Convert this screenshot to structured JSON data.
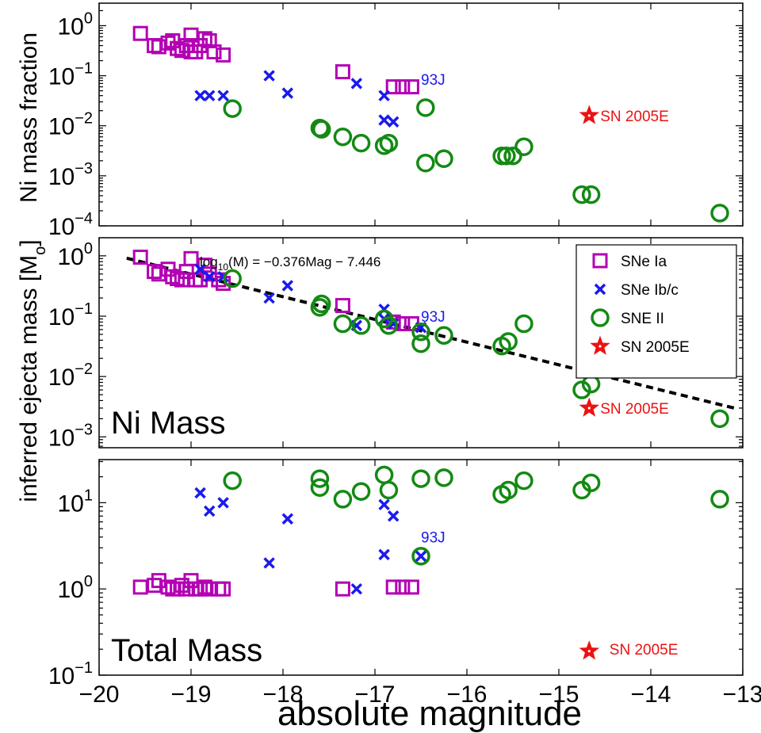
{
  "figure": {
    "xlabel": "absolute magnitude",
    "ylabel_main": "inferred ejecta mass [M",
    "ylabel_sub": "o",
    "ylabel_close": "]",
    "x_ticks": [
      "−20",
      "−19",
      "−18",
      "−17",
      "−16",
      "−15",
      "−14",
      "−13"
    ]
  },
  "colors": {
    "ia": "#b300b3",
    "ibc": "#1a1aee",
    "ii": "#138a13",
    "sn2005e": "#ee1111",
    "fit": "#000000"
  },
  "chart_data": [
    {
      "type": "scatter",
      "panel": "top",
      "ylabel": "Ni mass fraction",
      "xlim": [
        -20,
        -13
      ],
      "ylim": [
        0.0001,
        2
      ],
      "yscale": "log",
      "y_ticks": [
        {
          "base": "10",
          "exp": "0"
        },
        {
          "base": "10",
          "exp": "−1"
        },
        {
          "base": "10",
          "exp": "−2"
        },
        {
          "base": "10",
          "exp": "−3"
        },
        {
          "base": "10",
          "exp": "−4"
        }
      ],
      "annotations": [
        {
          "text": "93J",
          "x": -16.5,
          "y": 0.085,
          "color": "#1a1aee"
        },
        {
          "text": "SN 2005E",
          "x": -14.55,
          "y": 0.016,
          "color": "#ee1111"
        }
      ],
      "series": [
        {
          "key": "ia",
          "marker": "square",
          "points": [
            [
              -19.55,
              0.7
            ],
            [
              -19.4,
              0.4
            ],
            [
              -19.35,
              0.38
            ],
            [
              -19.25,
              0.45
            ],
            [
              -19.2,
              0.5
            ],
            [
              -19.15,
              0.35
            ],
            [
              -19.1,
              0.32
            ],
            [
              -19.05,
              0.4
            ],
            [
              -19.0,
              0.65
            ],
            [
              -19.0,
              0.3
            ],
            [
              -18.95,
              0.3
            ],
            [
              -18.9,
              0.4
            ],
            [
              -18.85,
              0.55
            ],
            [
              -18.8,
              0.5
            ],
            [
              -18.75,
              0.3
            ],
            [
              -18.65,
              0.26
            ],
            [
              -17.35,
              0.12
            ],
            [
              -16.8,
              0.06
            ],
            [
              -16.7,
              0.06
            ],
            [
              -16.6,
              0.06
            ]
          ]
        },
        {
          "key": "ibc",
          "marker": "x",
          "points": [
            [
              -18.9,
              0.04
            ],
            [
              -18.8,
              0.04
            ],
            [
              -18.65,
              0.04
            ],
            [
              -18.15,
              0.1
            ],
            [
              -17.95,
              0.045
            ],
            [
              -17.2,
              0.07
            ],
            [
              -16.9,
              0.04
            ],
            [
              -16.9,
              0.013
            ],
            [
              -16.8,
              0.012
            ]
          ]
        },
        {
          "key": "ii",
          "marker": "circle",
          "points": [
            [
              -18.55,
              0.022
            ],
            [
              -17.6,
              0.009
            ],
            [
              -17.58,
              0.0085
            ],
            [
              -17.35,
              0.006
            ],
            [
              -17.15,
              0.0045
            ],
            [
              -16.9,
              0.004
            ],
            [
              -16.85,
              0.0045
            ],
            [
              -16.45,
              0.023
            ],
            [
              -16.45,
              0.0018
            ],
            [
              -16.25,
              0.0022
            ],
            [
              -15.62,
              0.0025
            ],
            [
              -15.57,
              0.0025
            ],
            [
              -15.5,
              0.0025
            ],
            [
              -15.38,
              0.0038
            ],
            [
              -14.75,
              0.00042
            ],
            [
              -14.65,
              0.00042
            ],
            [
              -13.25,
              0.00018
            ]
          ]
        },
        {
          "key": "sn2005e",
          "marker": "star",
          "points": [
            [
              -14.67,
              0.016
            ]
          ]
        }
      ]
    },
    {
      "type": "scatter",
      "panel": "middle",
      "title": "Ni Mass",
      "fit_label": {
        "pre": "log",
        "sub": "10",
        "post": "(M) = −0.376Mag − 7.446"
      },
      "fit": {
        "slope": -0.376,
        "intercept": -7.446,
        "x_range": [
          -19.7,
          -13.05
        ]
      },
      "xlim": [
        -20,
        -13
      ],
      "ylim": [
        0.001,
        2
      ],
      "yscale": "log",
      "y_ticks": [
        {
          "base": "10",
          "exp": "0"
        },
        {
          "base": "10",
          "exp": "−1"
        },
        {
          "base": "10",
          "exp": "−2"
        },
        {
          "base": "10",
          "exp": "−3"
        }
      ],
      "legend": {
        "placement": "top-right",
        "entries": [
          {
            "key": "ia",
            "label": "SNe Ia"
          },
          {
            "key": "ibc",
            "label": "SNe Ib/c"
          },
          {
            "key": "ii",
            "label": "SNE II"
          },
          {
            "key": "sn2005e",
            "label": "SN 2005E"
          }
        ]
      },
      "annotations": [
        {
          "text": "93J",
          "x": -16.5,
          "y": 0.1,
          "color": "#1a1aee"
        },
        {
          "text": "SN 2005E",
          "x": -14.55,
          "y": 0.003,
          "color": "#ee1111"
        }
      ],
      "series": [
        {
          "key": "ia",
          "marker": "square",
          "points": [
            [
              -19.55,
              0.95
            ],
            [
              -19.4,
              0.55
            ],
            [
              -19.35,
              0.5
            ],
            [
              -19.25,
              0.6
            ],
            [
              -19.2,
              0.45
            ],
            [
              -19.15,
              0.42
            ],
            [
              -19.1,
              0.4
            ],
            [
              -19.05,
              0.55
            ],
            [
              -19.0,
              0.9
            ],
            [
              -18.95,
              0.4
            ],
            [
              -18.9,
              0.4
            ],
            [
              -18.85,
              0.7
            ],
            [
              -18.8,
              0.5
            ],
            [
              -18.7,
              0.4
            ],
            [
              -18.65,
              0.35
            ],
            [
              -17.35,
              0.15
            ],
            [
              -16.8,
              0.08
            ],
            [
              -16.7,
              0.075
            ],
            [
              -16.6,
              0.075
            ]
          ]
        },
        {
          "key": "ibc",
          "marker": "x",
          "points": [
            [
              -18.9,
              0.6
            ],
            [
              -18.8,
              0.45
            ],
            [
              -18.65,
              0.45
            ],
            [
              -18.15,
              0.2
            ],
            [
              -17.95,
              0.32
            ],
            [
              -17.2,
              0.07
            ],
            [
              -16.9,
              0.13
            ],
            [
              -16.9,
              0.09
            ],
            [
              -16.8,
              0.075
            ],
            [
              -16.5,
              0.065
            ]
          ]
        },
        {
          "key": "ii",
          "marker": "circle",
          "points": [
            [
              -18.55,
              0.42
            ],
            [
              -17.6,
              0.14
            ],
            [
              -17.58,
              0.16
            ],
            [
              -17.35,
              0.075
            ],
            [
              -17.15,
              0.07
            ],
            [
              -16.9,
              0.09
            ],
            [
              -16.85,
              0.07
            ],
            [
              -16.5,
              0.035
            ],
            [
              -16.5,
              0.055
            ],
            [
              -16.25,
              0.048
            ],
            [
              -15.62,
              0.032
            ],
            [
              -15.55,
              0.038
            ],
            [
              -15.38,
              0.075
            ],
            [
              -14.75,
              0.006
            ],
            [
              -14.65,
              0.0075
            ],
            [
              -13.25,
              0.002
            ]
          ]
        },
        {
          "key": "sn2005e",
          "marker": "star",
          "points": [
            [
              -14.67,
              0.003
            ]
          ]
        }
      ]
    },
    {
      "type": "scatter",
      "panel": "bottom",
      "title": "Total Mass",
      "xlim": [
        -20,
        -13
      ],
      "ylim": [
        0.1,
        30
      ],
      "yscale": "log",
      "y_ticks": [
        {
          "base": "10",
          "exp": "1"
        },
        {
          "base": "10",
          "exp": "0"
        },
        {
          "base": "10",
          "exp": "−1"
        }
      ],
      "annotations": [
        {
          "text": "93J",
          "x": -16.5,
          "y": 4,
          "color": "#1a1aee"
        },
        {
          "text": "SN 2005E",
          "x": -14.45,
          "y": 0.2,
          "color": "#ee1111"
        }
      ],
      "series": [
        {
          "key": "ia",
          "marker": "square",
          "points": [
            [
              -19.55,
              1.05
            ],
            [
              -19.4,
              1.1
            ],
            [
              -19.35,
              1.25
            ],
            [
              -19.25,
              1.05
            ],
            [
              -19.2,
              1.0
            ],
            [
              -19.15,
              1.0
            ],
            [
              -19.1,
              1.1
            ],
            [
              -19.05,
              1.0
            ],
            [
              -19.0,
              1.25
            ],
            [
              -18.95,
              1.0
            ],
            [
              -18.9,
              1.0
            ],
            [
              -18.85,
              1.05
            ],
            [
              -18.8,
              1.0
            ],
            [
              -18.7,
              1.0
            ],
            [
              -18.65,
              1.0
            ],
            [
              -17.35,
              1.0
            ],
            [
              -16.8,
              1.05
            ],
            [
              -16.7,
              1.05
            ],
            [
              -16.6,
              1.05
            ]
          ]
        },
        {
          "key": "ibc",
          "marker": "x",
          "points": [
            [
              -18.9,
              13
            ],
            [
              -18.8,
              8
            ],
            [
              -18.65,
              10
            ],
            [
              -18.15,
              2
            ],
            [
              -17.95,
              6.5
            ],
            [
              -17.2,
              1.0
            ],
            [
              -16.9,
              9.5
            ],
            [
              -16.9,
              2.5
            ],
            [
              -16.8,
              7
            ],
            [
              -16.5,
              2.4
            ]
          ]
        },
        {
          "key": "ii",
          "marker": "circle",
          "points": [
            [
              -18.55,
              18
            ],
            [
              -17.6,
              19
            ],
            [
              -17.6,
              15
            ],
            [
              -17.35,
              11
            ],
            [
              -17.15,
              13.5
            ],
            [
              -16.9,
              21
            ],
            [
              -16.85,
              14
            ],
            [
              -16.5,
              19
            ],
            [
              -16.5,
              2.4
            ],
            [
              -16.25,
              19.5
            ],
            [
              -15.62,
              12.5
            ],
            [
              -15.55,
              14
            ],
            [
              -15.38,
              18
            ],
            [
              -14.75,
              14
            ],
            [
              -14.65,
              17
            ],
            [
              -13.25,
              11
            ]
          ]
        },
        {
          "key": "sn2005e",
          "marker": "star",
          "points": [
            [
              -14.67,
              0.19
            ]
          ]
        }
      ]
    }
  ]
}
